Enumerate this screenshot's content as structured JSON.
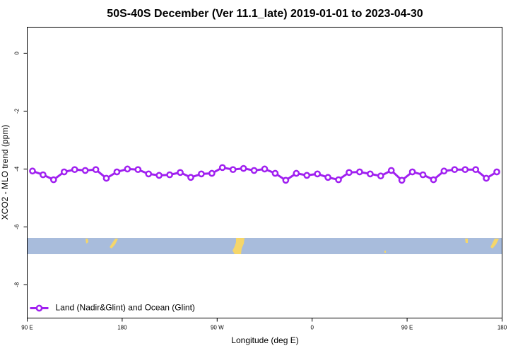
{
  "chart_data": {
    "type": "line",
    "title": "50S-40S December (Ver 11.1_late)   2019-01-01 to 2023-04-30",
    "x_label": "Longitude (deg E)",
    "y_label": "XCO2 - MLO trend (ppm)",
    "xlim": [
      90,
      540
    ],
    "ylim": [
      -9.15,
      0.9
    ],
    "xticks": [
      {
        "value": 90,
        "label": "90 E"
      },
      {
        "value": 180,
        "label": "180"
      },
      {
        "value": 270,
        "label": "90 W"
      },
      {
        "value": 360,
        "label": "0"
      },
      {
        "value": 450,
        "label": "90 E"
      },
      {
        "value": 540,
        "label": "180"
      }
    ],
    "yticks": [
      0,
      -2,
      -4,
      -6,
      -8
    ],
    "legend": "bottom-left",
    "x": [
      95,
      105,
      115,
      125,
      135,
      145,
      155,
      165,
      175,
      185,
      195,
      205,
      215,
      225,
      235,
      245,
      255,
      265,
      275,
      285,
      295,
      305,
      315,
      325,
      335,
      345,
      355,
      365,
      375,
      385,
      395,
      405,
      415,
      425,
      435,
      445,
      455,
      465,
      475,
      485,
      495,
      505,
      515,
      525,
      535
    ],
    "series": [
      {
        "name": "Land (Nadir&Glint) and Ocean (Glint)",
        "color": "#a020f0",
        "values": [
          -4.07,
          -4.2,
          -4.37,
          -4.1,
          -4.02,
          -4.05,
          -4.02,
          -4.32,
          -4.1,
          -4.0,
          -4.02,
          -4.17,
          -4.22,
          -4.2,
          -4.12,
          -4.29,
          -4.17,
          -4.15,
          -3.95,
          -4.02,
          -3.98,
          -4.05,
          -4.0,
          -4.15,
          -4.39,
          -4.15,
          -4.22,
          -4.17,
          -4.29,
          -4.37,
          -4.12,
          -4.1,
          -4.17,
          -4.24,
          -4.05,
          -4.39,
          -4.1,
          -4.2,
          -4.37,
          -4.07,
          -4.02,
          -4.02,
          -4.02,
          -4.32,
          -4.1
        ]
      }
    ]
  }
}
